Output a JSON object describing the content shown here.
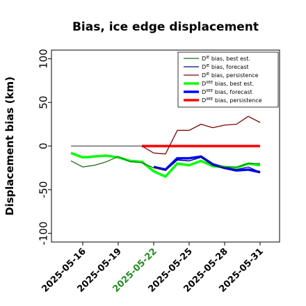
{
  "chart_data": {
    "type": "line",
    "title": "Bias, ice edge displacement",
    "ylabel": "Displacement bias (km)",
    "xlabel": "",
    "ylim": [
      -110,
      110
    ],
    "yticks": [
      100,
      50,
      0,
      -50,
      -100
    ],
    "x_dates": [
      "2025-05-15",
      "2025-05-16",
      "2025-05-17",
      "2025-05-18",
      "2025-05-19",
      "2025-05-20",
      "2025-05-21",
      "2025-05-22",
      "2025-05-23",
      "2025-05-24",
      "2025-05-25",
      "2025-05-26",
      "2025-05-27",
      "2025-05-28",
      "2025-05-29",
      "2025-05-30",
      "2025-05-31"
    ],
    "xticks": [
      {
        "label": "2025-05-16",
        "date": "2025-05-16",
        "color": "#000000"
      },
      {
        "label": "2025-05-19",
        "date": "2025-05-19",
        "color": "#000000"
      },
      {
        "label": "2025-05-22",
        "date": "2025-05-22",
        "color": "#228B22"
      },
      {
        "label": "2025-05-25",
        "date": "2025-05-25",
        "color": "#000000"
      },
      {
        "label": "2025-05-28",
        "date": "2025-05-28",
        "color": "#000000"
      },
      {
        "label": "2025-05-31",
        "date": "2025-05-31",
        "color": "#000000"
      }
    ],
    "zero_line": {
      "from": "2025-05-15",
      "to": "2025-05-21",
      "value": 0,
      "color": "#555555"
    },
    "legend": "top-right",
    "series": [
      {
        "base": "D",
        "sup": "IE",
        "name": " bias, best est.",
        "color": "#1a6b1a",
        "width": 1.3,
        "values": [
          -17,
          -24,
          -22,
          -18,
          -12,
          -18,
          -19,
          -25,
          -28,
          -16,
          -17,
          -13,
          -22,
          -24,
          -24,
          -20,
          -20
        ]
      },
      {
        "base": "D",
        "sup": "IE",
        "name": " bias, forecast",
        "color": "#00008B",
        "width": 1.3,
        "values": [
          null,
          null,
          null,
          null,
          null,
          null,
          null,
          -24,
          -28,
          -16,
          -17,
          -13,
          -22,
          -26,
          -27,
          -24,
          -30
        ]
      },
      {
        "base": "D",
        "sup": "IE",
        "name": " bias, persistence",
        "color": "#800000",
        "width": 1.3,
        "values": [
          null,
          null,
          null,
          null,
          null,
          null,
          0,
          -8,
          -9,
          18,
          18,
          25,
          21,
          24,
          25,
          34,
          27
        ]
      },
      {
        "base": "D",
        "sup": "IIEE",
        "name": " bias, best est.",
        "color": "#00ff00",
        "width": 3.5,
        "values": [
          -8,
          -13,
          -12,
          -11,
          -13,
          -17,
          -18,
          -29,
          -35,
          -20,
          -22,
          -17,
          -23,
          -24,
          -25,
          -20,
          -22
        ]
      },
      {
        "base": "D",
        "sup": "IIEE",
        "name": " bias, forecast",
        "color": "#0000ff",
        "width": 3.5,
        "values": [
          null,
          null,
          null,
          null,
          null,
          null,
          null,
          -24,
          -27,
          -14,
          -14,
          -12,
          -21,
          -25,
          -28,
          -27,
          -30
        ]
      },
      {
        "base": "D",
        "sup": "IIEE",
        "name": " bias, persistence",
        "color": "#ff0000",
        "width": 3.5,
        "values": [
          null,
          null,
          null,
          null,
          null,
          null,
          0,
          0,
          0,
          0,
          0,
          0,
          0,
          0,
          0,
          0,
          0
        ]
      }
    ]
  }
}
